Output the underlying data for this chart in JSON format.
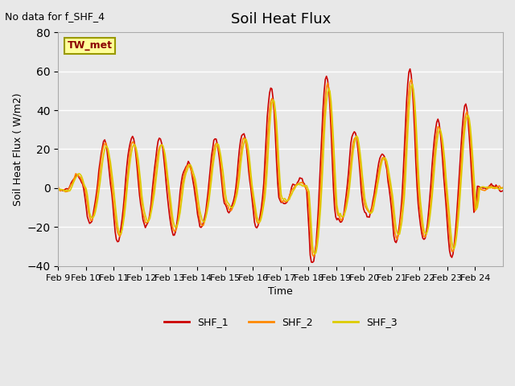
{
  "title": "Soil Heat Flux",
  "subtitle": "No data for f_SHF_4",
  "ylabel": "Soil Heat Flux ( W/m2)",
  "xlabel": "Time",
  "legend_label": "TW_met",
  "series_names": [
    "SHF_1",
    "SHF_2",
    "SHF_3"
  ],
  "series_colors": [
    "#cc0000",
    "#ff8800",
    "#ddcc00"
  ],
  "ylim": [
    -40,
    80
  ],
  "yticks": [
    -40,
    -20,
    0,
    20,
    40,
    60,
    80
  ],
  "xtick_labels": [
    "Feb 9",
    "Feb 10",
    "Feb 11",
    "Feb 12",
    "Feb 13",
    "Feb 14",
    "Feb 15",
    "Feb 16",
    "Feb 17",
    "Feb 18",
    "Feb 19",
    "Feb 20",
    "Feb 21",
    "Feb 22",
    "Feb 23",
    "Feb 24"
  ],
  "bg_color": "#e8e8e8",
  "plot_bg_color": "#e8e8e8",
  "legend_box_color": "#ffff99",
  "legend_box_edge": "#999900"
}
